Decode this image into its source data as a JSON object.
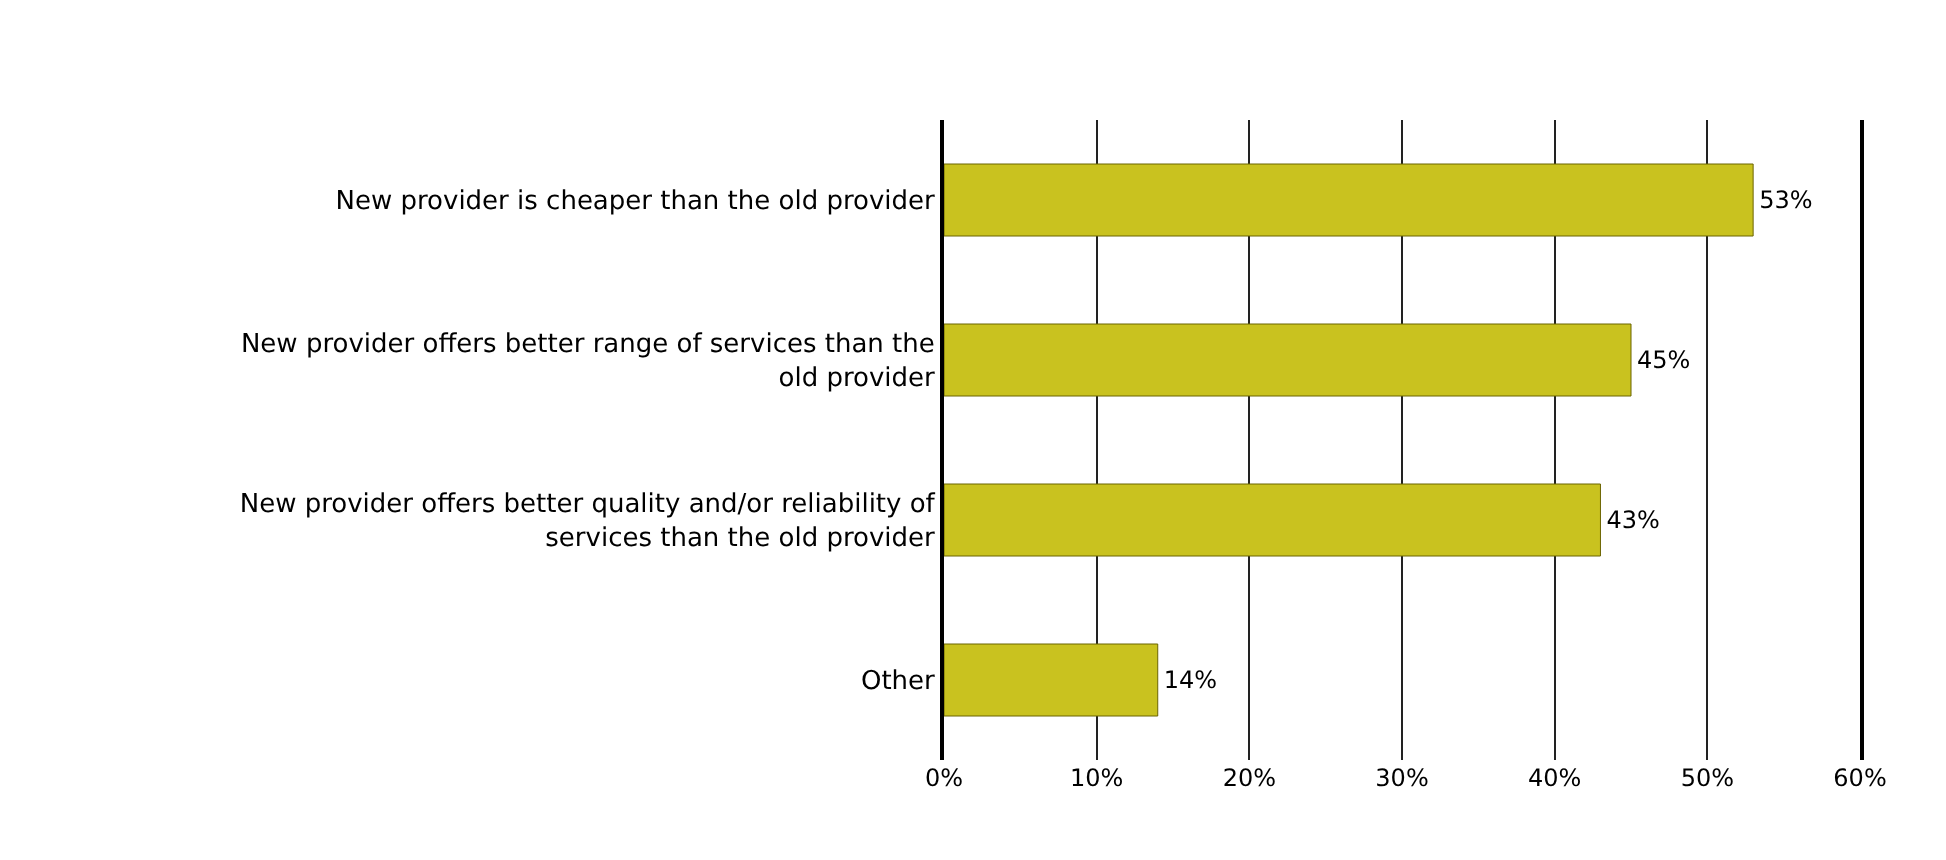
{
  "chart_data": {
    "type": "bar",
    "orientation": "horizontal",
    "categories": [
      "New provider is cheaper than the old provider",
      "New provider offers better range of services than the old provider",
      "New provider offers better quality and/or reliability of services than the old provider",
      "Other"
    ],
    "values": [
      53,
      45,
      43,
      14
    ],
    "color": "#c9c21f",
    "value_labels": [
      "53%",
      "45%",
      "43%",
      "14%"
    ],
    "xlim": [
      0,
      60
    ],
    "xticks": [
      {
        "value": 0,
        "label": "0%"
      },
      {
        "value": 10,
        "label": "10%"
      },
      {
        "value": 20,
        "label": "20%"
      },
      {
        "value": 30,
        "label": "30%"
      },
      {
        "value": 40,
        "label": "40%"
      },
      {
        "value": 50,
        "label": "50%"
      },
      {
        "value": 60,
        "label": "60%"
      }
    ],
    "grid": "x"
  }
}
